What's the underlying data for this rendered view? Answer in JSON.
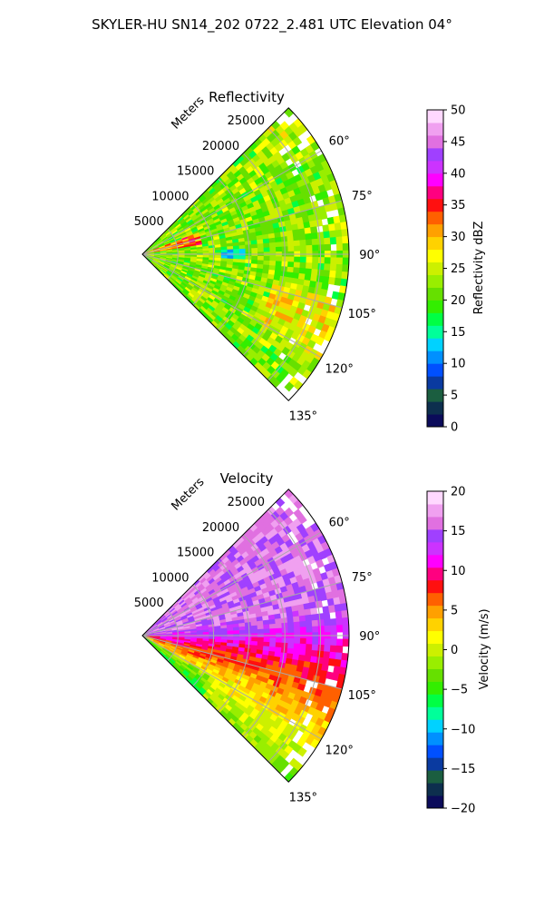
{
  "figure": {
    "title": "SKYLER-HU  SN14_202  0722_2.481 UTC Elevation 04°"
  },
  "chart_data": [
    {
      "type": "heatmap",
      "projection": "polar-sector",
      "title": "Reflectivity",
      "radial_label": "Meters",
      "radial_ticks": [
        5000,
        10000,
        15000,
        20000,
        25000
      ],
      "radial_tick_labels": [
        "5000",
        "10000",
        "15000",
        "20000",
        "25000"
      ],
      "rmax": 29000,
      "angle_range_deg": [
        45,
        135
      ],
      "angle_ticks": [
        60,
        75,
        90,
        105,
        120,
        135
      ],
      "angle_tick_labels": [
        "60°",
        "75°",
        "90°",
        "105°",
        "120°",
        "135°"
      ],
      "grid": true,
      "colorbar": {
        "label": "Reflectivity dBZ",
        "min": 0,
        "max": 50,
        "ticks": [
          0,
          5,
          10,
          15,
          20,
          25,
          30,
          35,
          40,
          45,
          50
        ],
        "tick_labels": [
          "0",
          "5",
          "10",
          "15",
          "20",
          "25",
          "30",
          "35",
          "40",
          "45",
          "50"
        ],
        "colors": [
          "#0b0b5a",
          "#0d2f4e",
          "#1b5e40",
          "#0a3aa0",
          "#0050ff",
          "#0090ff",
          "#00d2ff",
          "#00ff9a",
          "#00ff44",
          "#33ee00",
          "#66e000",
          "#99ee00",
          "#ccf000",
          "#ffff00",
          "#ffd200",
          "#ffa000",
          "#ff6000",
          "#ff1010",
          "#ff0080",
          "#ff00ff",
          "#cc33ff",
          "#a040ff",
          "#e070e0",
          "#f0a0f0",
          "#ffd8ff"
        ]
      },
      "field_summary": [
        {
          "region": "most of sector",
          "value_range": [
            18,
            28
          ]
        },
        {
          "region": "near radar along 75–80°",
          "value_range": [
            28,
            38
          ]
        },
        {
          "region": "near 90°, 6000 m",
          "value_range": [
            10,
            15
          ]
        },
        {
          "region": "outer 105–120°",
          "value_range": [
            25,
            33
          ]
        }
      ]
    },
    {
      "type": "heatmap",
      "projection": "polar-sector",
      "title": "Velocity",
      "radial_label": "Meters",
      "radial_ticks": [
        5000,
        10000,
        15000,
        20000,
        25000
      ],
      "radial_tick_labels": [
        "5000",
        "10000",
        "15000",
        "20000",
        "25000"
      ],
      "rmax": 29000,
      "angle_range_deg": [
        45,
        135
      ],
      "angle_ticks": [
        60,
        75,
        90,
        105,
        120,
        135
      ],
      "angle_tick_labels": [
        "60°",
        "75°",
        "90°",
        "105°",
        "120°",
        "135°"
      ],
      "grid": true,
      "colorbar": {
        "label": "Velocity (m/s)",
        "min": -20,
        "max": 20,
        "ticks": [
          -20,
          -15,
          -10,
          -5,
          0,
          5,
          10,
          15,
          20
        ],
        "tick_labels": [
          "−20",
          "−15",
          "−10",
          "−5",
          "0",
          "5",
          "10",
          "15",
          "20"
        ],
        "colors": [
          "#0b0b5a",
          "#0d2f4e",
          "#1b5e40",
          "#0a3aa0",
          "#0050ff",
          "#0090ff",
          "#00d2ff",
          "#00ff9a",
          "#00ff44",
          "#33ee00",
          "#66e000",
          "#99ee00",
          "#ccf000",
          "#ffff00",
          "#ffd200",
          "#ffa000",
          "#ff6000",
          "#ff1010",
          "#ff0080",
          "#ff00ff",
          "#cc33ff",
          "#a040ff",
          "#e070e0",
          "#f0a0f0",
          "#ffd8ff"
        ]
      },
      "field_summary": [
        {
          "region": "azimuth 45–80°",
          "value_range": [
            14,
            18
          ]
        },
        {
          "region": "azimuth 80–100°",
          "value_range": [
            8,
            12
          ]
        },
        {
          "region": "azimuth 100–120°",
          "value_range": [
            2,
            8
          ]
        },
        {
          "region": "azimuth 120–135°",
          "value_range": [
            -3,
            3
          ]
        }
      ]
    }
  ]
}
